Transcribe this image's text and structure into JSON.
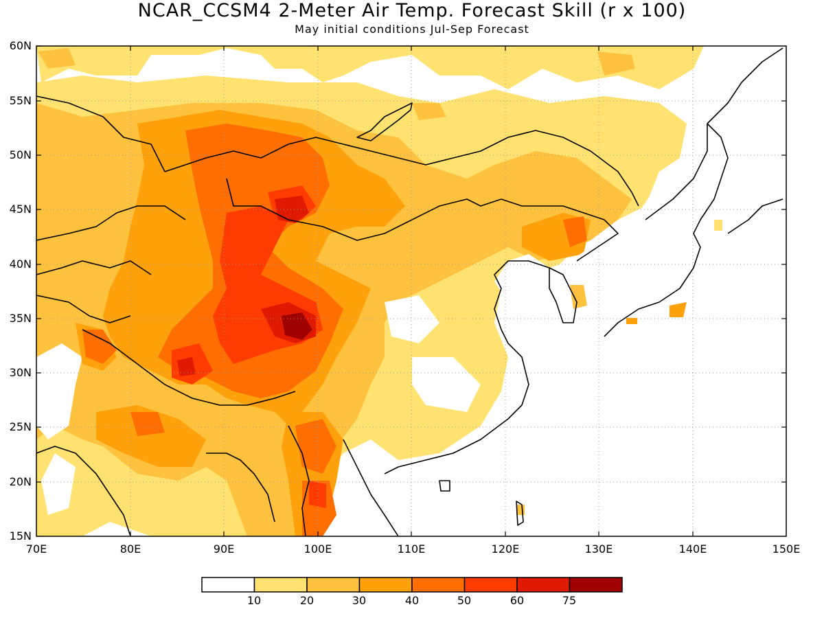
{
  "title": "NCAR_CCSM4 2-Meter Air Temp. Forecast Skill (r x 100)",
  "subtitle": "May initial conditions  Jul-Sep Forecast",
  "map": {
    "lat_labels": [
      "60N",
      "55N",
      "50N",
      "45N",
      "40N",
      "35N",
      "30N",
      "25N",
      "20N",
      "15N"
    ],
    "lon_labels": [
      "70E",
      "80E",
      "90E",
      "100E",
      "110E",
      "120E",
      "130E",
      "140E",
      "150E"
    ],
    "lat_range": [
      15,
      60
    ],
    "lon_range": [
      70,
      150
    ],
    "grid": "dotted"
  },
  "colorbar": {
    "labels": [
      "10",
      "20",
      "30",
      "40",
      "50",
      "60",
      "75"
    ],
    "colors": [
      "#ffffff",
      "#ffe270",
      "#ffc23f",
      "#ffa10a",
      "#ff6e00",
      "#ff3c00",
      "#e01a00",
      "#a00000"
    ]
  }
}
